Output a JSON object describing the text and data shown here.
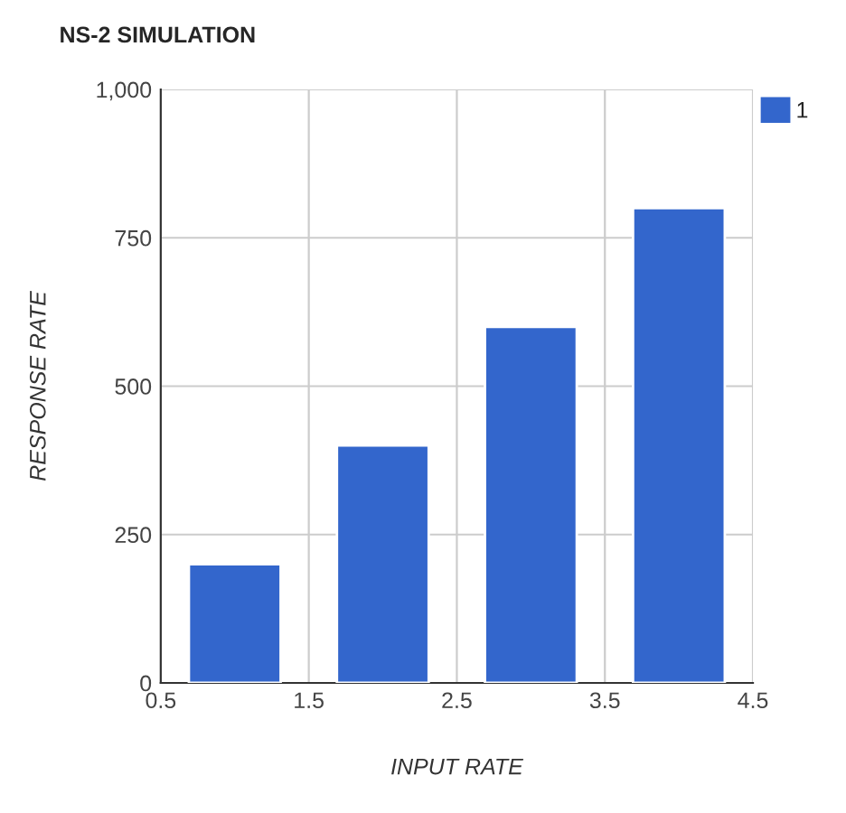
{
  "chart_data": {
    "type": "bar",
    "title": "NS-2 SIMULATION",
    "xlabel": "INPUT RATE",
    "ylabel": "RESPONSE RATE",
    "x": [
      1,
      2,
      3,
      4
    ],
    "series": [
      {
        "name": "1",
        "color": "#3366cc",
        "values": [
          200,
          400,
          600,
          800
        ]
      }
    ],
    "xlim": [
      0.5,
      4.5
    ],
    "xticks": [
      0.5,
      1.5,
      2.5,
      3.5,
      4.5
    ],
    "ylim": [
      0,
      1000
    ],
    "yticks": [
      0,
      250,
      500,
      750,
      {
        "value": 1000,
        "label": "1,000"
      }
    ],
    "grid": true,
    "legend": "top right"
  }
}
